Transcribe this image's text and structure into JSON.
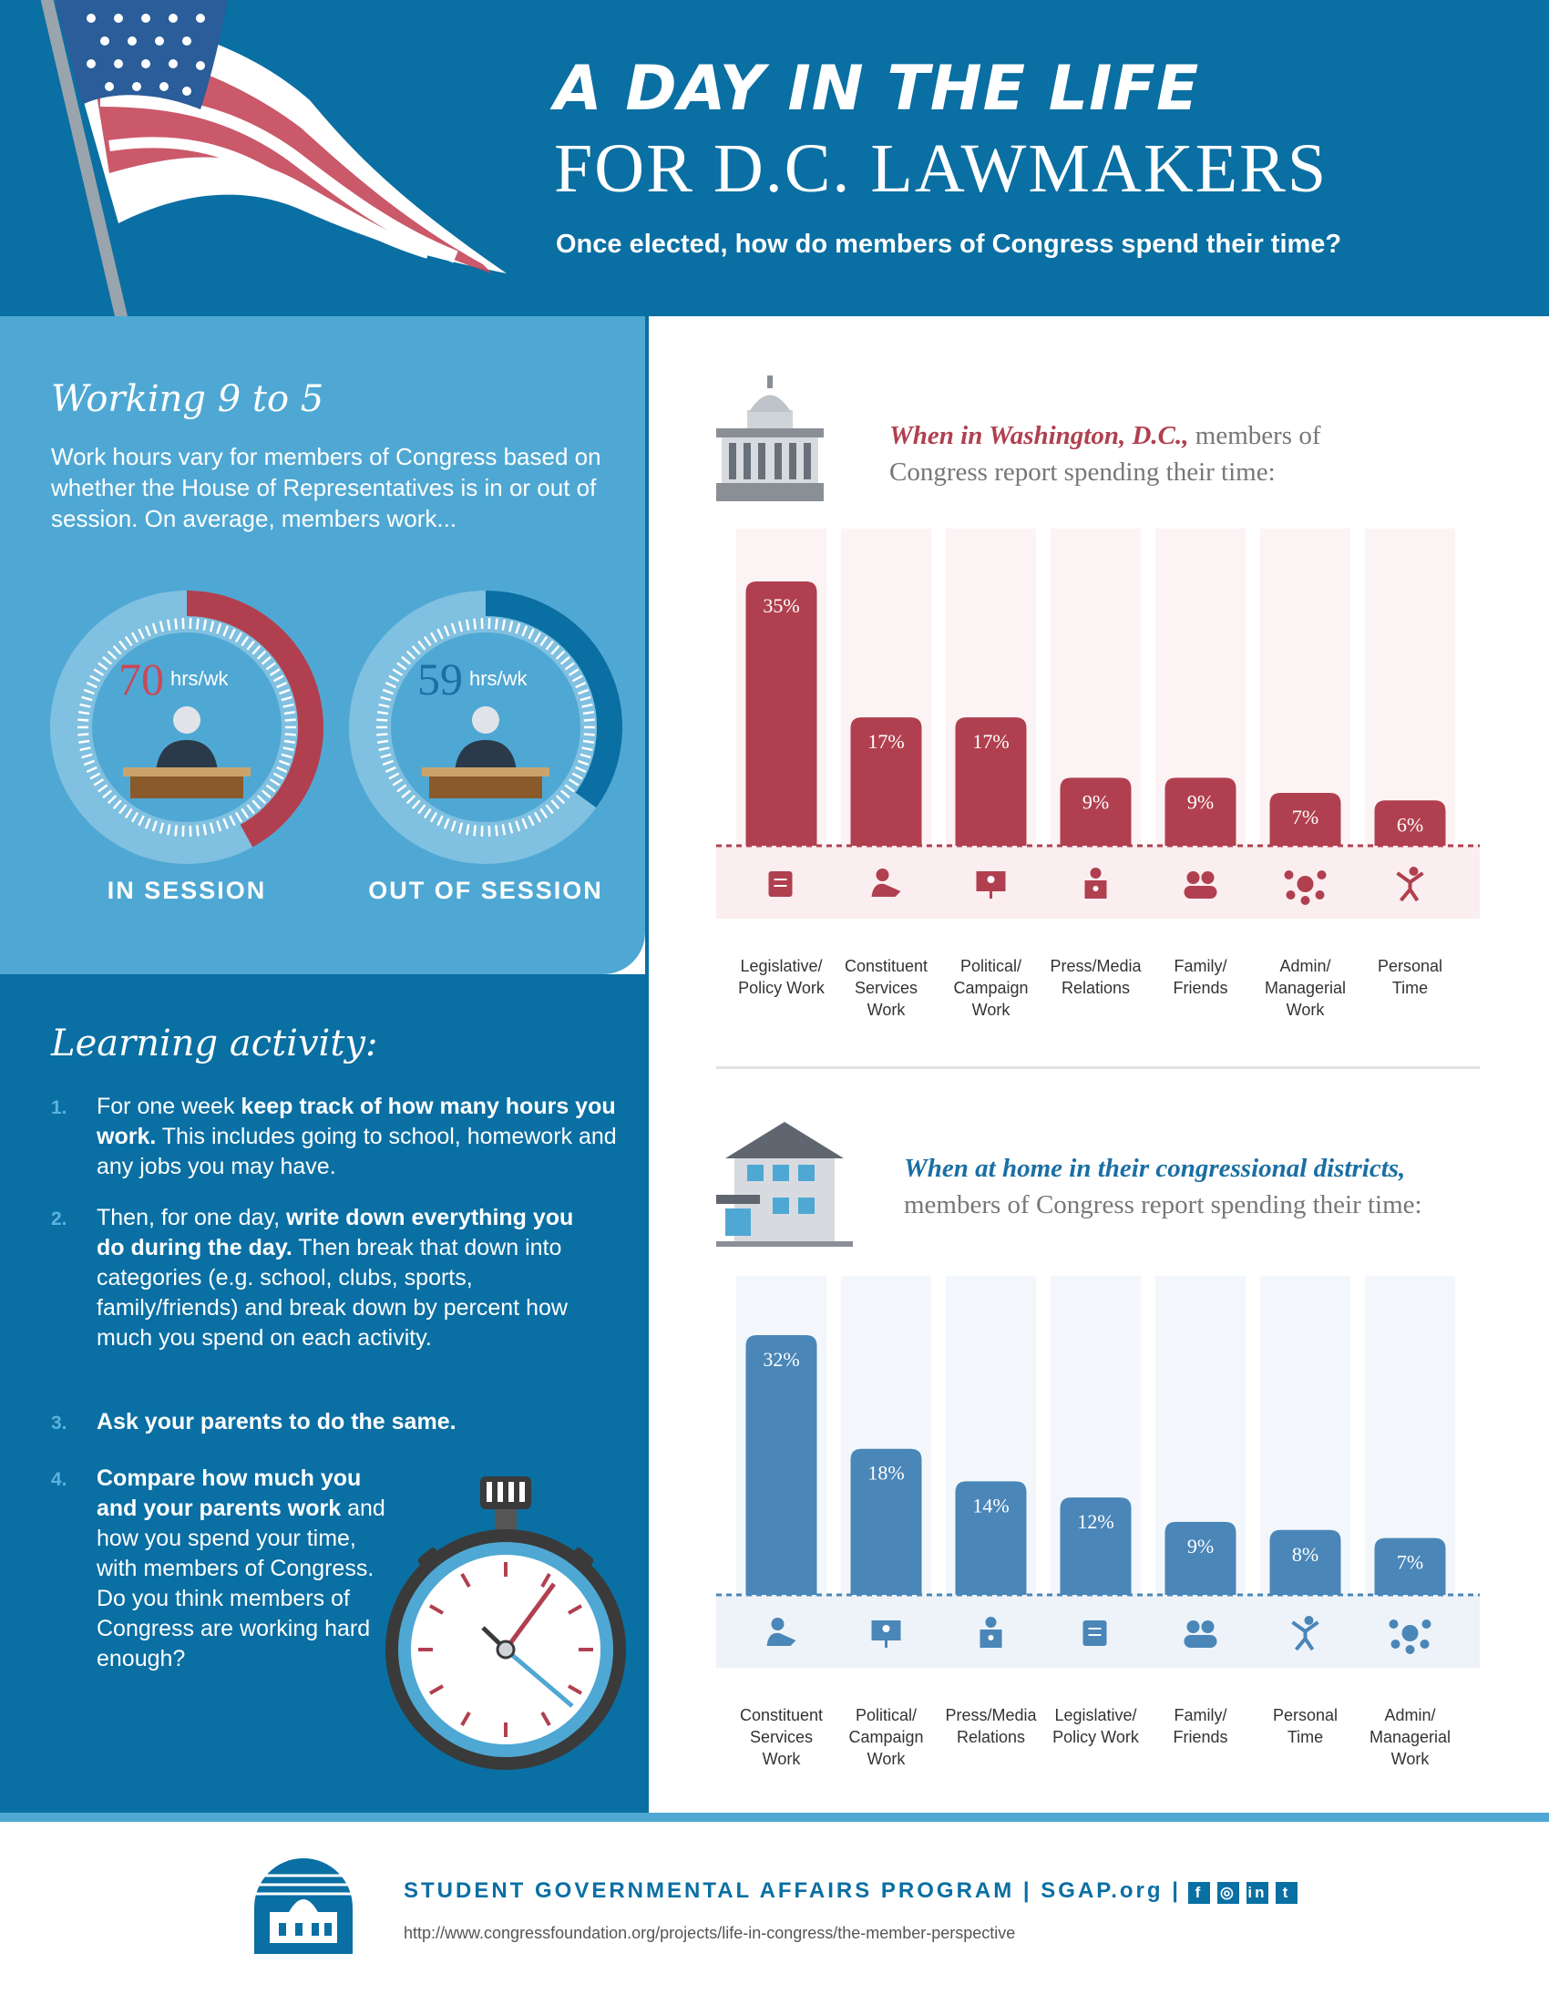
{
  "header": {
    "title_line1": "A DAY IN THE LIFE",
    "title_line2": "FOR D.C. LAWMAKERS",
    "subtitle": "Once elected, how do members of Congress spend their time?"
  },
  "working": {
    "heading": "Working 9 to 5",
    "text": "Work hours vary for members of Congress based on whether the House of Representatives is in or out of session. On average, members work...",
    "gauges": [
      {
        "value": "70",
        "unit": "hrs/wk",
        "label": "IN SESSION",
        "fraction": 0.42,
        "color": "#b0404f"
      },
      {
        "value": "59",
        "unit": "hrs/wk",
        "label": "OUT OF SESSION",
        "fraction": 0.35,
        "color": "#0a6fa3"
      }
    ]
  },
  "learning": {
    "heading": "Learning activity:",
    "steps": [
      {
        "num": "1.",
        "bold": "keep track of how many hours you work.",
        "pre": "For one week ",
        "post": " This includes going to school, homework and any jobs you may have."
      },
      {
        "num": "2.",
        "pre": "Then, for one day, ",
        "bold": "write down everything you do during the day.",
        "post": " Then break that down into categories (e.g. school, clubs, sports, family/friends) and break down by percent how much you spend on each activity."
      },
      {
        "num": "3.",
        "pre": "",
        "bold": "Ask your parents to do the same.",
        "post": ""
      },
      {
        "num": "4.",
        "pre": "",
        "bold": "Compare how much you and your parents work",
        "post": " and how you spend your time, with members of Congress. Do you think members of Congress are working hard enough?"
      }
    ]
  },
  "chart_data": [
    {
      "type": "bar",
      "intro_emphasis": "When in Washington, D.C.,",
      "intro_rest_1": " members of",
      "intro_rest_2": "Congress report spending their time:",
      "categories": [
        "Legislative/ Policy Work",
        "Constituent Services Work",
        "Political/ Campaign Work",
        "Press/Media Relations",
        "Family/ Friends",
        "Admin/ Managerial Work",
        "Personal Time"
      ],
      "category_lines": [
        [
          "Legislative/",
          "Policy Work"
        ],
        [
          "Constituent",
          "Services",
          "Work"
        ],
        [
          "Political/",
          "Campaign",
          "Work"
        ],
        [
          "Press/Media",
          "Relations"
        ],
        [
          "Family/",
          "Friends"
        ],
        [
          "Admin/",
          "Managerial",
          "Work"
        ],
        [
          "Personal",
          "Time"
        ]
      ],
      "values": [
        35,
        17,
        17,
        9,
        9,
        7,
        6
      ],
      "labels": [
        "35%",
        "17%",
        "17%",
        "9%",
        "9%",
        "7%",
        "6%"
      ],
      "icons": [
        "scroll-icon",
        "handshake-icon",
        "presentation-icon",
        "podium-icon",
        "family-icon",
        "meeting-icon",
        "person-jumping-icon"
      ],
      "color": "#b0404f",
      "ylim": [
        0,
        35
      ]
    },
    {
      "type": "bar",
      "intro_emphasis": "When at home in their congressional districts,",
      "intro_rest_1": "",
      "intro_rest_2": "members of Congress report spending their time:",
      "categories": [
        "Constituent Services Work",
        "Political/ Campaign Work",
        "Press/Media Relations",
        "Legislative/ Policy Work",
        "Family/ Friends",
        "Personal Time",
        "Admin/ Managerial Work"
      ],
      "category_lines": [
        [
          "Constituent",
          "Services",
          "Work"
        ],
        [
          "Political/",
          "Campaign",
          "Work"
        ],
        [
          "Press/Media",
          "Relations"
        ],
        [
          "Legislative/",
          "Policy Work"
        ],
        [
          "Family/",
          "Friends"
        ],
        [
          "Personal",
          "Time"
        ],
        [
          "Admin/",
          "Managerial",
          "Work"
        ]
      ],
      "values": [
        32,
        18,
        14,
        12,
        9,
        8,
        7
      ],
      "labels": [
        "32%",
        "18%",
        "14%",
        "12%",
        "9%",
        "8%",
        "7%"
      ],
      "icons": [
        "handshake-icon",
        "presentation-icon",
        "podium-icon",
        "scroll-icon",
        "family-icon",
        "person-jumping-icon",
        "meeting-icon"
      ],
      "color": "#4a86b8",
      "ylim": [
        0,
        32
      ]
    }
  ],
  "footer": {
    "org": "STUDENT GOVERNMENTAL AFFAIRS PROGRAM | SGAP.org |",
    "url": "http://www.congressfoundation.org/projects/life-in-congress/the-member-perspective"
  }
}
